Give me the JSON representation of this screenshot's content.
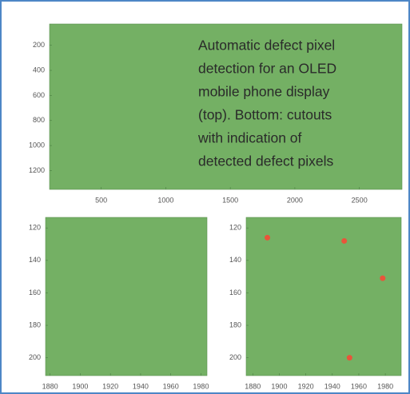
{
  "chart_data": [
    {
      "type": "image",
      "color": "#74b064",
      "annotation": [
        "Automatic defect pixel",
        "detection for an OLED",
        "mobile phone display",
        "(top). Bottom: cutouts",
        "with indication of",
        "detected defect pixels"
      ],
      "xlim": [
        100,
        2830
      ],
      "xticks": [
        500,
        1000,
        1500,
        2000,
        2500
      ],
      "ylim": [
        30,
        1350
      ],
      "yticks": [
        200,
        400,
        600,
        800,
        1000,
        1200
      ]
    },
    {
      "type": "image",
      "color": "#74b064",
      "xlim": [
        1877,
        1984
      ],
      "xticks": [
        1880,
        1900,
        1920,
        1940,
        1960,
        1980
      ],
      "ylim": [
        113.5,
        211
      ],
      "yticks": [
        120,
        140,
        160,
        180,
        200
      ]
    },
    {
      "type": "scatter",
      "color": "#74b064",
      "marker_color": "#e8553a",
      "x": [
        1891,
        1949,
        1978,
        1953
      ],
      "y": [
        126,
        128,
        151,
        200
      ],
      "xlim": [
        1875,
        1992
      ],
      "xticks": [
        1880,
        1900,
        1920,
        1940,
        1960,
        1980
      ],
      "ylim": [
        113.5,
        211
      ],
      "yticks": [
        120,
        140,
        160,
        180,
        200
      ]
    }
  ]
}
